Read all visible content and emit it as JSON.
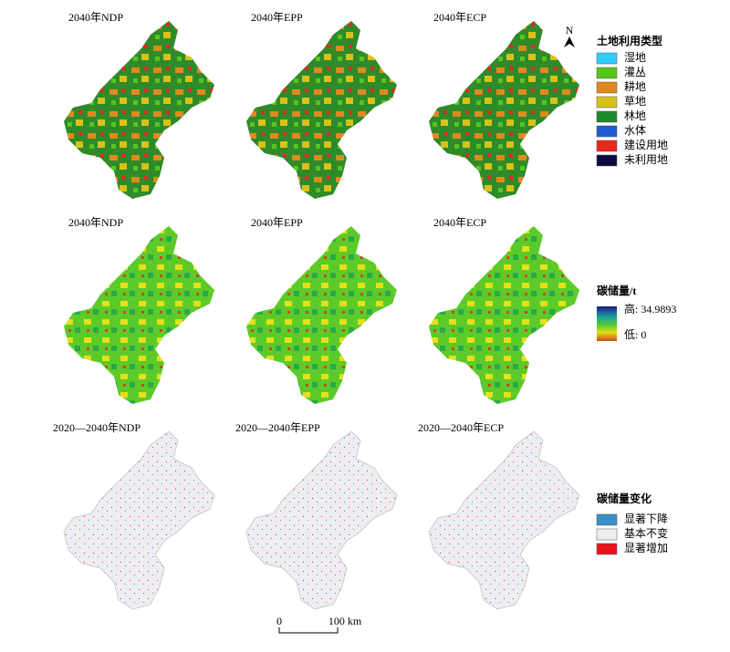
{
  "rows": [
    {
      "panels": [
        "2040年NDP",
        "2040年EPP",
        "2040年ECP"
      ]
    },
    {
      "panels": [
        "2040年NDP",
        "2040年EPP",
        "2040年ECP"
      ]
    },
    {
      "panels": [
        "2020—2040年NDP",
        "2020—2040年EPP",
        "2020—2040年ECP"
      ]
    }
  ],
  "north_arrow": "N",
  "legend_land": {
    "title": "土地利用类型",
    "items": [
      {
        "label": "湿地",
        "color": "#33ccff"
      },
      {
        "label": "灌丛",
        "color": "#55c61b"
      },
      {
        "label": "耕地",
        "color": "#e08a1e"
      },
      {
        "label": "草地",
        "color": "#d8c21a"
      },
      {
        "label": "林地",
        "color": "#1c8a2a"
      },
      {
        "label": "水体",
        "color": "#1f5bd6"
      },
      {
        "label": "建设用地",
        "color": "#e8281e"
      },
      {
        "label": "未利用地",
        "color": "#0a0a40"
      }
    ]
  },
  "legend_carbon": {
    "title": "碳储量/t",
    "high": "高: 34.9893",
    "low": "低: 0"
  },
  "legend_change": {
    "title": "碳储量变化",
    "items": [
      {
        "label": "显著下降",
        "color": "#3a90c8"
      },
      {
        "label": "基本不变",
        "color": "#eeeeee"
      },
      {
        "label": "显著增加",
        "color": "#e8141e"
      }
    ]
  },
  "scale_bar": {
    "labels": [
      "0",
      "100 km"
    ]
  }
}
